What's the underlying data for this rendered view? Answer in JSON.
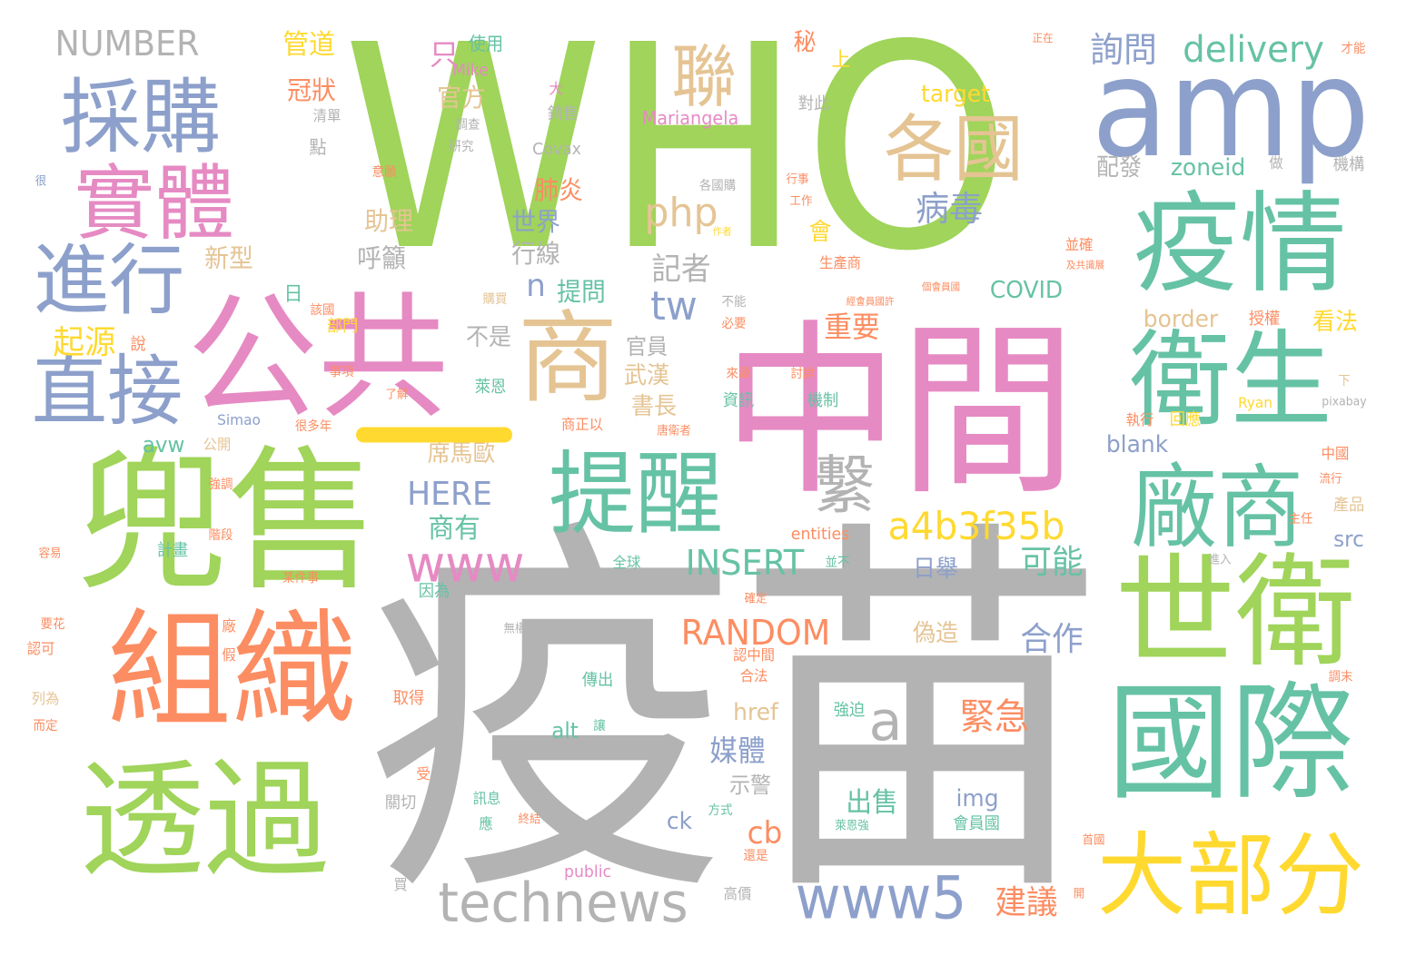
{
  "palette": {
    "green": "#a0d45a",
    "gray": "#b3b3b3",
    "pink": "#e68ac3",
    "teal": "#66c2a5",
    "blue": "#8da0cb",
    "orange": "#fc8d62",
    "yellow": "#ffd92f",
    "tan": "#e5c494"
  },
  "words": [
    {
      "text": "疫苗",
      "color": "gray"
    },
    {
      "text": "WHO",
      "color": "green"
    },
    {
      "text": "中間",
      "color": "pink"
    },
    {
      "text": "兜售",
      "color": "green"
    },
    {
      "text": "公共",
      "color": "pink"
    },
    {
      "text": "amp",
      "color": "blue"
    },
    {
      "text": "組織",
      "color": "orange"
    },
    {
      "text": "透過",
      "color": "green"
    },
    {
      "text": "國際",
      "color": "teal"
    },
    {
      "text": "世衛",
      "color": "green"
    },
    {
      "text": "疫情",
      "color": "teal"
    },
    {
      "text": "衛生",
      "color": "teal"
    },
    {
      "text": "商",
      "color": "tan"
    },
    {
      "text": "提醒",
      "color": "teal"
    },
    {
      "text": "廠商",
      "color": "teal"
    },
    {
      "text": "採購",
      "color": "blue"
    },
    {
      "text": "實體",
      "color": "pink"
    },
    {
      "text": "進行",
      "color": "blue"
    },
    {
      "text": "直接",
      "color": "blue"
    },
    {
      "text": "大部分",
      "color": "yellow"
    },
    {
      "text": "各國",
      "color": "tan"
    },
    {
      "text": "聯",
      "color": "tan"
    },
    {
      "text": "technews",
      "color": "gray"
    },
    {
      "text": "www5",
      "color": "blue"
    },
    {
      "text": "www",
      "color": "pink"
    },
    {
      "text": "繫",
      "color": "gray"
    },
    {
      "text": "a4b3f35b",
      "color": "yellow"
    },
    {
      "text": "delivery",
      "color": "teal"
    },
    {
      "text": "NUMBER",
      "color": "gray"
    },
    {
      "text": "RANDOM",
      "color": "orange"
    },
    {
      "text": "INSERT",
      "color": "teal"
    },
    {
      "text": "HERE",
      "color": "blue"
    },
    {
      "text": "php",
      "color": "tan"
    },
    {
      "text": "tw",
      "color": "blue"
    },
    {
      "text": "a",
      "color": "gray"
    },
    {
      "text": "病毒",
      "color": "blue"
    },
    {
      "text": "詢問",
      "color": "blue"
    },
    {
      "text": "緊急",
      "color": "orange"
    },
    {
      "text": "建議",
      "color": "orange"
    },
    {
      "text": "合作",
      "color": "blue"
    },
    {
      "text": "可能",
      "color": "teal"
    },
    {
      "text": "起源",
      "color": "yellow"
    },
    {
      "text": "記者",
      "color": "gray"
    },
    {
      "text": "重要",
      "color": "orange"
    },
    {
      "text": "商有",
      "color": "teal"
    },
    {
      "text": "媒體",
      "color": "blue"
    },
    {
      "text": "出售",
      "color": "teal"
    },
    {
      "text": "cb",
      "color": "orange"
    },
    {
      "text": "只",
      "color": "pink"
    },
    {
      "text": "管道",
      "color": "yellow"
    },
    {
      "text": "冠狀",
      "color": "orange"
    },
    {
      "text": "官方",
      "color": "tan"
    },
    {
      "text": "肺炎",
      "color": "orange"
    },
    {
      "text": "助理",
      "color": "tan"
    },
    {
      "text": "世界",
      "color": "blue"
    },
    {
      "text": "新型",
      "color": "tan"
    },
    {
      "text": "呼籲",
      "color": "gray"
    },
    {
      "text": "行線",
      "color": "gray"
    },
    {
      "text": "n",
      "color": "blue"
    },
    {
      "text": "提問",
      "color": "teal"
    },
    {
      "text": "會",
      "color": "yellow"
    },
    {
      "text": "配發",
      "color": "gray"
    },
    {
      "text": "zoneid",
      "color": "teal"
    },
    {
      "text": "target",
      "color": "yellow"
    },
    {
      "text": "COVID",
      "color": "teal"
    },
    {
      "text": "border",
      "color": "tan"
    },
    {
      "text": "不是",
      "color": "gray"
    },
    {
      "text": "官員",
      "color": "gray"
    },
    {
      "text": "武漢",
      "color": "tan"
    },
    {
      "text": "書長",
      "color": "tan"
    },
    {
      "text": "席馬歐",
      "color": "tan"
    },
    {
      "text": "avw",
      "color": "teal"
    },
    {
      "text": "blank",
      "color": "blue"
    },
    {
      "text": "href",
      "color": "tan"
    },
    {
      "text": "偽造",
      "color": "tan"
    },
    {
      "text": "日舉",
      "color": "blue"
    },
    {
      "text": "看法",
      "color": "yellow"
    },
    {
      "text": "img",
      "color": "blue"
    },
    {
      "text": "ck",
      "color": "blue"
    },
    {
      "text": "alt",
      "color": "teal"
    },
    {
      "text": "示警",
      "color": "gray"
    },
    {
      "text": "src",
      "color": "blue"
    },
    {
      "text": "Mariangela",
      "color": "pink"
    },
    {
      "text": "Covax",
      "color": "gray"
    },
    {
      "text": "Mike",
      "color": "pink"
    },
    {
      "text": "Simao",
      "color": "blue"
    },
    {
      "text": "Ryan",
      "color": "yellow"
    },
    {
      "text": "pixabay",
      "color": "gray"
    },
    {
      "text": "public",
      "color": "pink"
    },
    {
      "text": "entities",
      "color": "orange"
    },
    {
      "text": "使用",
      "color": "teal"
    },
    {
      "text": "秘",
      "color": "orange"
    },
    {
      "text": "上",
      "color": "yellow"
    },
    {
      "text": "正在",
      "color": "orange"
    },
    {
      "text": "才能",
      "color": "orange"
    },
    {
      "text": "銷售",
      "color": "gray"
    },
    {
      "text": "調查",
      "color": "gray"
    },
    {
      "text": "研究",
      "color": "gray"
    },
    {
      "text": "清單",
      "color": "gray"
    },
    {
      "text": "點",
      "color": "gray"
    },
    {
      "text": "大",
      "color": "pink"
    },
    {
      "text": "對此",
      "color": "gray"
    },
    {
      "text": "意願",
      "color": "orange"
    },
    {
      "text": "各國購",
      "color": "gray"
    },
    {
      "text": "作者",
      "color": "yellow"
    },
    {
      "text": "工作",
      "color": "orange"
    },
    {
      "text": "行事",
      "color": "orange"
    },
    {
      "text": "做",
      "color": "gray"
    },
    {
      "text": "機構",
      "color": "gray"
    },
    {
      "text": "並確",
      "color": "orange"
    },
    {
      "text": "及共識展",
      "color": "orange"
    },
    {
      "text": "生產商",
      "color": "orange"
    },
    {
      "text": "個會員國",
      "color": "orange"
    },
    {
      "text": "經會員國許",
      "color": "orange"
    },
    {
      "text": "授權",
      "color": "orange"
    },
    {
      "text": "不能",
      "color": "gray"
    },
    {
      "text": "必要",
      "color": "orange"
    },
    {
      "text": "購買",
      "color": "tan"
    },
    {
      "text": "部門",
      "color": "yellow"
    },
    {
      "text": "說",
      "color": "orange"
    },
    {
      "text": "該國",
      "color": "orange"
    },
    {
      "text": "日",
      "color": "teal"
    },
    {
      "text": "事項",
      "color": "orange"
    },
    {
      "text": "萊恩",
      "color": "teal"
    },
    {
      "text": "了解",
      "color": "orange"
    },
    {
      "text": "很多年",
      "color": "orange"
    },
    {
      "text": "公開",
      "color": "tan"
    },
    {
      "text": "來源",
      "color": "orange"
    },
    {
      "text": "資訊",
      "color": "teal"
    },
    {
      "text": "討論",
      "color": "orange"
    },
    {
      "text": "機制",
      "color": "teal"
    },
    {
      "text": "商正以",
      "color": "orange"
    },
    {
      "text": "唐衛者",
      "color": "orange"
    },
    {
      "text": "下",
      "color": "tan"
    },
    {
      "text": "執行",
      "color": "orange"
    },
    {
      "text": "回應",
      "color": "yellow"
    },
    {
      "text": "中國",
      "color": "orange"
    },
    {
      "text": "流行",
      "color": "orange"
    },
    {
      "text": "產品",
      "color": "tan"
    },
    {
      "text": "主任",
      "color": "orange"
    },
    {
      "text": "強調",
      "color": "orange"
    },
    {
      "text": "階段",
      "color": "orange"
    },
    {
      "text": "計畫",
      "color": "teal"
    },
    {
      "text": "容易",
      "color": "orange"
    },
    {
      "text": "某件事",
      "color": "orange"
    },
    {
      "text": "全球",
      "color": "teal"
    },
    {
      "text": "並不",
      "color": "teal"
    },
    {
      "text": "因為",
      "color": "teal"
    },
    {
      "text": "進入",
      "color": "gray"
    },
    {
      "text": "很",
      "color": "blue"
    },
    {
      "text": "確定",
      "color": "orange"
    },
    {
      "text": "認中間",
      "color": "orange"
    },
    {
      "text": "合法",
      "color": "orange"
    },
    {
      "text": "廠",
      "color": "orange"
    },
    {
      "text": "假",
      "color": "orange"
    },
    {
      "text": "無權",
      "color": "gray"
    },
    {
      "text": "要花",
      "color": "orange"
    },
    {
      "text": "認可",
      "color": "orange"
    },
    {
      "text": "列為",
      "color": "tan"
    },
    {
      "text": "而定",
      "color": "orange"
    },
    {
      "text": "傳出",
      "color": "teal"
    },
    {
      "text": "取得",
      "color": "orange"
    },
    {
      "text": "強迫",
      "color": "teal"
    },
    {
      "text": "調末",
      "color": "orange"
    },
    {
      "text": "讓",
      "color": "teal"
    },
    {
      "text": "受",
      "color": "orange"
    },
    {
      "text": "訊息",
      "color": "teal"
    },
    {
      "text": "關切",
      "color": "gray"
    },
    {
      "text": "應",
      "color": "teal"
    },
    {
      "text": "方式",
      "color": "teal"
    },
    {
      "text": "終結",
      "color": "orange"
    },
    {
      "text": "萊恩強",
      "color": "teal"
    },
    {
      "text": "會員國",
      "color": "teal"
    },
    {
      "text": "首國",
      "color": "orange"
    },
    {
      "text": "還是",
      "color": "orange"
    },
    {
      "text": "買",
      "color": "gray"
    },
    {
      "text": "高價",
      "color": "gray"
    },
    {
      "text": "開",
      "color": "orange"
    }
  ]
}
